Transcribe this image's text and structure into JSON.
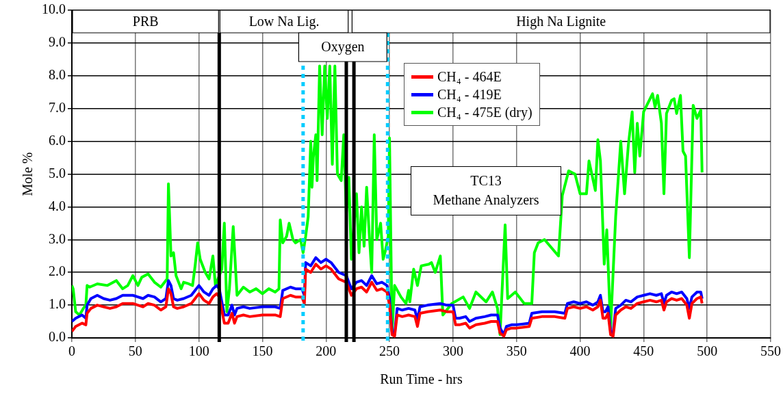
{
  "chart_data": {
    "type": "line",
    "xlabel": "Run Time - hrs",
    "ylabel": "Mole %",
    "xlim": [
      0,
      550
    ],
    "xticks": [
      0,
      50,
      100,
      150,
      200,
      250,
      300,
      350,
      400,
      450,
      500,
      550
    ],
    "ylim": [
      0,
      10
    ],
    "yticks": [
      {
        "value": 0,
        "label": "0.0"
      },
      {
        "value": 1,
        "label": "1.0"
      },
      {
        "value": 2,
        "label": "2.0"
      },
      {
        "value": 3,
        "label": "3.0"
      },
      {
        "value": 4,
        "label": "4.0"
      },
      {
        "value": 5,
        "label": "5.0"
      },
      {
        "value": 6,
        "label": "6.0"
      },
      {
        "value": 7,
        "label": "7.0"
      },
      {
        "value": 8,
        "label": "8.0"
      },
      {
        "value": 9,
        "label": "9.0"
      },
      {
        "value": 10,
        "label": "10.0"
      }
    ],
    "grid": true,
    "legend": "top right",
    "marker": "none",
    "line_style": "solid",
    "series": [
      {
        "name": "CH₄ - 464E",
        "color": "#ff0000",
        "x": [
          0,
          3,
          8,
          11,
          12,
          15,
          20,
          25,
          30,
          35,
          40,
          48,
          52,
          56,
          60,
          65,
          70,
          74,
          76,
          78,
          80,
          83,
          88,
          94,
          97,
          100,
          104,
          108,
          111,
          114,
          116,
          120,
          123,
          126,
          128,
          130,
          135,
          140,
          150,
          160,
          164,
          166,
          172,
          176,
          181,
          183,
          184,
          188,
          192,
          196,
          200,
          204,
          210,
          216,
          220,
          224,
          228,
          232,
          236,
          240,
          244,
          248,
          250,
          252,
          254,
          256,
          260,
          265,
          270,
          272,
          274,
          280,
          290,
          295,
          300,
          302,
          305,
          310,
          313,
          318,
          325,
          330,
          335,
          337,
          340,
          342,
          346,
          350,
          360,
          362,
          370,
          380,
          388,
          390,
          395,
          400,
          405,
          410,
          414,
          416,
          418,
          420,
          422,
          424,
          426,
          428,
          432,
          436,
          440,
          445,
          450,
          455,
          460,
          464,
          466,
          468,
          472,
          476,
          480,
          484,
          486,
          488,
          492,
          495,
          496
        ],
        "values": [
          0.2,
          0.35,
          0.45,
          0.4,
          0.75,
          0.9,
          1.0,
          0.95,
          0.9,
          0.95,
          1.05,
          1.05,
          1.0,
          0.95,
          1.05,
          1.0,
          0.85,
          0.95,
          1.5,
          1.35,
          0.95,
          0.9,
          0.95,
          1.05,
          1.2,
          1.35,
          1.15,
          1.05,
          1.25,
          1.35,
          1.25,
          0.45,
          0.45,
          0.75,
          0.45,
          0.65,
          0.7,
          0.65,
          0.7,
          0.7,
          0.65,
          1.2,
          1.3,
          1.25,
          1.25,
          1.05,
          2.1,
          2.0,
          2.25,
          2.1,
          2.2,
          2.1,
          1.8,
          1.7,
          1.3,
          1.5,
          1.55,
          1.4,
          1.7,
          1.45,
          1.5,
          1.4,
          1.0,
          0.1,
          0.05,
          0.7,
          0.65,
          0.7,
          0.65,
          0.35,
          0.75,
          0.8,
          0.85,
          0.8,
          0.8,
          0.4,
          0.4,
          0.45,
          0.3,
          0.4,
          0.45,
          0.5,
          0.5,
          0.15,
          0.05,
          0.25,
          0.3,
          0.3,
          0.35,
          0.6,
          0.65,
          0.65,
          0.6,
          0.9,
          0.95,
          0.9,
          0.95,
          0.85,
          0.95,
          1.15,
          0.6,
          0.6,
          0.75,
          0.1,
          0.05,
          0.7,
          0.85,
          0.95,
          0.9,
          1.05,
          1.1,
          1.15,
          1.1,
          1.15,
          0.85,
          1.1,
          1.2,
          1.15,
          1.2,
          1.0,
          0.6,
          1.05,
          1.2,
          1.25,
          1.05
        ]
      },
      {
        "name": "CH₄ - 419E",
        "color": "#0000ff",
        "x": [
          0,
          3,
          8,
          11,
          12,
          15,
          20,
          25,
          30,
          35,
          40,
          48,
          52,
          56,
          60,
          65,
          70,
          74,
          76,
          78,
          80,
          83,
          88,
          94,
          97,
          100,
          104,
          108,
          111,
          114,
          116,
          120,
          123,
          126,
          128,
          130,
          135,
          140,
          150,
          160,
          164,
          166,
          172,
          176,
          181,
          183,
          184,
          188,
          192,
          196,
          200,
          204,
          210,
          216,
          220,
          224,
          228,
          232,
          236,
          240,
          244,
          248,
          250,
          252,
          254,
          256,
          260,
          265,
          270,
          272,
          274,
          280,
          290,
          295,
          300,
          302,
          305,
          310,
          313,
          318,
          325,
          330,
          335,
          337,
          340,
          342,
          346,
          350,
          360,
          362,
          370,
          380,
          388,
          390,
          395,
          400,
          405,
          410,
          414,
          416,
          418,
          420,
          422,
          424,
          426,
          428,
          432,
          436,
          440,
          445,
          450,
          455,
          460,
          464,
          466,
          468,
          472,
          476,
          480,
          484,
          486,
          488,
          492,
          495,
          496
        ],
        "values": [
          0.5,
          0.6,
          0.7,
          0.6,
          1.0,
          1.2,
          1.3,
          1.2,
          1.15,
          1.2,
          1.3,
          1.3,
          1.25,
          1.2,
          1.3,
          1.25,
          1.1,
          1.2,
          1.75,
          1.6,
          1.2,
          1.15,
          1.2,
          1.3,
          1.45,
          1.6,
          1.4,
          1.3,
          1.5,
          1.6,
          1.5,
          0.7,
          0.7,
          1.0,
          0.7,
          0.9,
          0.95,
          0.9,
          0.95,
          0.95,
          0.9,
          1.45,
          1.55,
          1.5,
          1.5,
          1.3,
          2.3,
          2.2,
          2.45,
          2.3,
          2.4,
          2.3,
          2.0,
          1.9,
          1.5,
          1.7,
          1.75,
          1.6,
          1.9,
          1.65,
          1.7,
          1.6,
          1.2,
          0.2,
          0.1,
          0.9,
          0.85,
          0.9,
          0.85,
          0.55,
          0.95,
          1.0,
          1.05,
          1.0,
          1.0,
          0.6,
          0.6,
          0.65,
          0.5,
          0.6,
          0.65,
          0.7,
          0.7,
          0.3,
          0.1,
          0.35,
          0.4,
          0.4,
          0.45,
          0.75,
          0.8,
          0.8,
          0.75,
          1.05,
          1.1,
          1.05,
          1.1,
          1.0,
          1.1,
          1.3,
          0.8,
          0.8,
          0.95,
          0.2,
          0.15,
          0.9,
          1.0,
          1.15,
          1.1,
          1.25,
          1.3,
          1.35,
          1.3,
          1.35,
          1.05,
          1.3,
          1.4,
          1.35,
          1.4,
          1.2,
          0.9,
          1.25,
          1.4,
          1.4,
          1.2
        ]
      },
      {
        "name": "CH₄ - 475E (dry)",
        "color": "#00ff00",
        "x": [
          0,
          1,
          3,
          6,
          9,
          11,
          12,
          14,
          20,
          28,
          35,
          40,
          44,
          48,
          52,
          55,
          60,
          65,
          70,
          73,
          75,
          76,
          78,
          80,
          82,
          86,
          88,
          92,
          95,
          97,
          99,
          101,
          105,
          108,
          111,
          113,
          116,
          118,
          120,
          122,
          124,
          127,
          130,
          135,
          140,
          145,
          150,
          155,
          160,
          163,
          164,
          166,
          169,
          171,
          174,
          176,
          180,
          182,
          184,
          186,
          188,
          189,
          190,
          192,
          193,
          195,
          197,
          199,
          201,
          203,
          205,
          207,
          209,
          212,
          214,
          216,
          218,
          220,
          222,
          224,
          226,
          228,
          230,
          232,
          234,
          236,
          238,
          240,
          243,
          245,
          247,
          249,
          250,
          252,
          254,
          259,
          263,
          265,
          266,
          269,
          272,
          275,
          281,
          283,
          286,
          290,
          292,
          299,
          308,
          313,
          318,
          326,
          331,
          335,
          337,
          341,
          343,
          349,
          356,
          362,
          364,
          367,
          372,
          383,
          386,
          391,
          396,
          400,
          405,
          407,
          412,
          414,
          416,
          419,
          421,
          424,
          428,
          432,
          435,
          438,
          441,
          443,
          445,
          447,
          450,
          457,
          459,
          461,
          464,
          466,
          468,
          472,
          474,
          476,
          479,
          481,
          483,
          486,
          489,
          492,
          495,
          496
        ],
        "values": [
          1.6,
          1.5,
          0.8,
          0.7,
          0.9,
          1.0,
          1.6,
          1.55,
          1.65,
          1.6,
          1.75,
          1.5,
          1.6,
          1.9,
          1.6,
          1.85,
          1.95,
          1.7,
          1.55,
          1.7,
          1.8,
          4.7,
          2.5,
          2.6,
          1.9,
          1.5,
          1.7,
          1.65,
          1.6,
          2.2,
          2.9,
          2.4,
          2.0,
          1.8,
          2.5,
          1.6,
          1.9,
          2.1,
          3.5,
          0.8,
          1.5,
          3.4,
          1.3,
          1.55,
          1.4,
          1.5,
          1.35,
          1.5,
          1.4,
          1.5,
          3.6,
          2.9,
          3.1,
          3.5,
          3.0,
          2.9,
          3.0,
          2.6,
          3.1,
          3.7,
          6.0,
          4.6,
          5.5,
          6.2,
          4.8,
          8.3,
          6.2,
          8.3,
          6.7,
          8.3,
          5.3,
          8.3,
          5.0,
          4.8,
          6.2,
          3.8,
          4.9,
          2.4,
          3.4,
          4.4,
          2.6,
          4.0,
          2.8,
          4.6,
          3.2,
          2.0,
          6.2,
          3.0,
          3.5,
          2.4,
          2.7,
          3.1,
          6.1,
          0.2,
          1.6,
          1.25,
          1.05,
          1.45,
          1.1,
          2.1,
          1.6,
          2.2,
          2.25,
          2.3,
          2.0,
          2.5,
          0.7,
          1.05,
          1.25,
          0.9,
          1.4,
          1.1,
          1.4,
          0.9,
          0.1,
          3.45,
          1.2,
          1.4,
          1.05,
          1.05,
          2.6,
          2.9,
          3.0,
          2.5,
          4.35,
          5.1,
          5.0,
          4.4,
          4.4,
          5.4,
          4.5,
          6.05,
          5.4,
          2.25,
          3.3,
          0.3,
          3.7,
          6.0,
          4.4,
          5.9,
          6.9,
          5.05,
          6.55,
          5.55,
          6.9,
          7.45,
          7.05,
          7.4,
          6.55,
          4.4,
          6.85,
          7.25,
          7.3,
          6.85,
          7.4,
          5.7,
          5.55,
          2.45,
          7.1,
          6.7,
          6.95,
          5.05
        ]
      }
    ],
    "ref_lines": [
      {
        "axis": "x",
        "value": 116,
        "color": "#000000",
        "line_style": "solid"
      },
      {
        "axis": "x",
        "value": 216,
        "color": "#000000",
        "line_style": "solid"
      },
      {
        "axis": "x",
        "value": 222,
        "color": "#000000",
        "line_style": "solid"
      },
      {
        "axis": "x",
        "value": 182,
        "color": "#00ccff",
        "line_style": "dotted"
      },
      {
        "axis": "x",
        "value": 248.5,
        "color": "#00ccff",
        "line_style": "dotted"
      }
    ],
    "bands": [
      {
        "axis": "x",
        "from": 0,
        "to": 116,
        "label": "PRB"
      },
      {
        "axis": "x",
        "from": 116,
        "to": 218,
        "label": "Low Na Lig."
      },
      {
        "axis": "x",
        "from": 220,
        "to": 550,
        "label": "High Na Lignite"
      },
      {
        "axis": "x",
        "from": 178,
        "to": 248.5,
        "label": "Oxygen"
      }
    ],
    "annotations": [
      "TC13\nMethane Analyzers"
    ]
  }
}
